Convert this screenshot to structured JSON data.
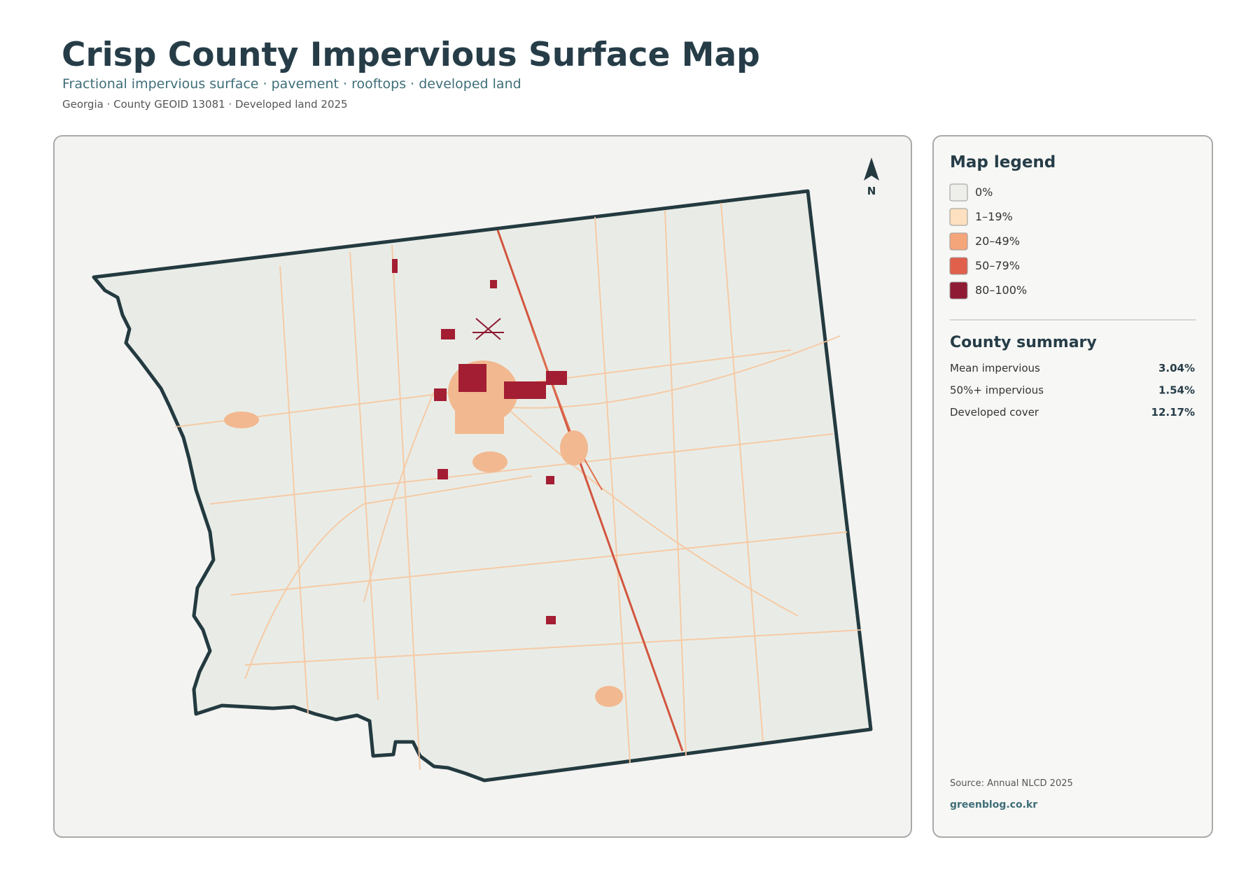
{
  "header": {
    "title": "Crisp County Impervious Surface Map",
    "subtitle": "Fractional impervious surface · pavement · rooftops · developed land",
    "meta": "Georgia · County GEOID 13081 · Developed land 2025"
  },
  "map": {
    "north_label": "N"
  },
  "legend": {
    "title": "Map legend",
    "items": [
      {
        "label": "0%",
        "color": "#eeeeea"
      },
      {
        "label": "1–19%",
        "color": "#fde0c0"
      },
      {
        "label": "20–49%",
        "color": "#f5a57a"
      },
      {
        "label": "50–79%",
        "color": "#e0604b"
      },
      {
        "label": "80–100%",
        "color": "#8e1a33"
      }
    ]
  },
  "summary": {
    "title": "County summary",
    "rows": [
      [
        "Mean impervious",
        "3.04%"
      ],
      [
        "50%+ impervious",
        "1.54%"
      ],
      [
        "Developed cover",
        "12.17%"
      ]
    ]
  },
  "footer": {
    "source": "Source: Annual NLCD 2025",
    "site": "greenblog.co.kr"
  }
}
